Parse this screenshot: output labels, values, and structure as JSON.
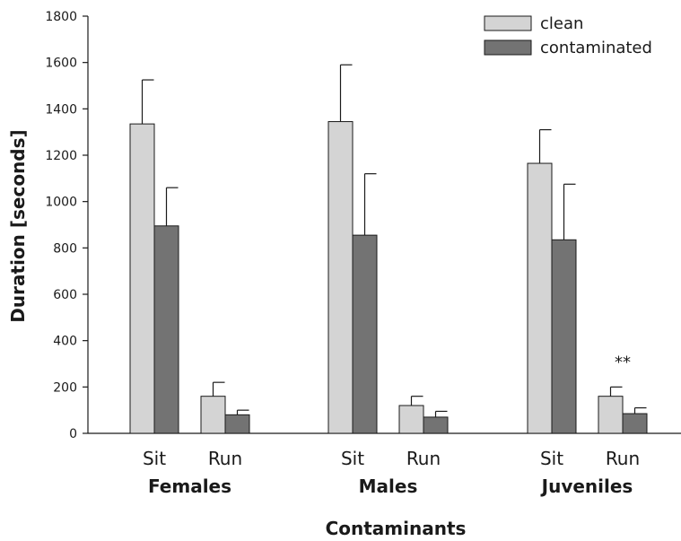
{
  "chart_data": {
    "type": "bar",
    "xlabel": "Contaminants",
    "ylabel": "Duration [seconds]",
    "ylim": [
      0,
      1800
    ],
    "yticks": [
      0,
      200,
      400,
      600,
      800,
      1000,
      1200,
      1400,
      1600,
      1800
    ],
    "legend_position": "top-right",
    "colors": {
      "clean": "#d4d4d4",
      "contaminated": "#737373"
    },
    "groups": [
      {
        "name": "Females",
        "categories": [
          {
            "label": "Sit",
            "clean": 1335,
            "clean_err": 190,
            "contaminated": 895,
            "contaminated_err": 165
          },
          {
            "label": "Run",
            "clean": 160,
            "clean_err": 60,
            "contaminated": 80,
            "contaminated_err": 20
          }
        ]
      },
      {
        "name": "Males",
        "categories": [
          {
            "label": "Sit",
            "clean": 1345,
            "clean_err": 245,
            "contaminated": 855,
            "contaminated_err": 265
          },
          {
            "label": "Run",
            "clean": 120,
            "clean_err": 40,
            "contaminated": 70,
            "contaminated_err": 25
          }
        ]
      },
      {
        "name": "Juveniles",
        "categories": [
          {
            "label": "Sit",
            "clean": 1165,
            "clean_err": 145,
            "contaminated": 835,
            "contaminated_err": 240
          },
          {
            "label": "Run",
            "clean": 160,
            "clean_err": 40,
            "contaminated": 85,
            "contaminated_err": 25,
            "annotation": "**"
          }
        ]
      }
    ],
    "series": [
      {
        "name": "clean"
      },
      {
        "name": "contaminated"
      }
    ]
  }
}
